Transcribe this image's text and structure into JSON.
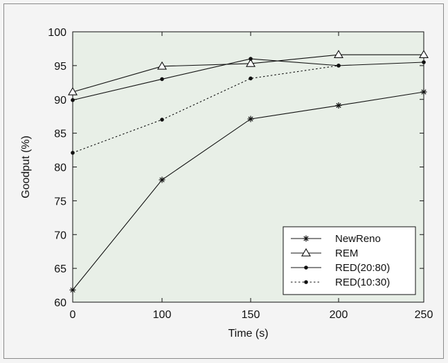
{
  "chart_data": {
    "type": "line",
    "xlabel": "Time (s)",
    "ylabel": "Goodput (%)",
    "xlim": [
      0,
      250
    ],
    "ylim": [
      60,
      100
    ],
    "x_ticks": [
      "0",
      "100",
      "150",
      "200",
      "250"
    ],
    "y_ticks": [
      "60",
      "65",
      "70",
      "75",
      "80",
      "85",
      "90",
      "95",
      "100"
    ],
    "grid": false,
    "legend_position": "bottom-right",
    "series": [
      {
        "name": "NewReno",
        "marker": "star",
        "dash": "solid",
        "x": [
          0,
          100,
          150,
          200,
          250
        ],
        "y": [
          61.8,
          78.1,
          87.1,
          89.1,
          91.1
        ]
      },
      {
        "name": "REM",
        "marker": "triangle",
        "dash": "solid",
        "x": [
          0,
          100,
          150,
          200,
          250
        ],
        "y": [
          91.1,
          94.9,
          95.3,
          96.6,
          96.6
        ]
      },
      {
        "name": "RED(20:80)",
        "marker": "dot",
        "dash": "solid",
        "x": [
          0,
          100,
          150,
          200,
          250
        ],
        "y": [
          89.9,
          93.0,
          96.0,
          95.0,
          95.5
        ]
      },
      {
        "name": "RED(10:30)",
        "marker": "dot",
        "dash": "dotted",
        "x": [
          0,
          100,
          150,
          200
        ],
        "y": [
          82.1,
          87.0,
          93.1,
          95.0
        ]
      }
    ],
    "colors": {
      "plot_background": "#e8efe7",
      "line": "#111111"
    }
  }
}
